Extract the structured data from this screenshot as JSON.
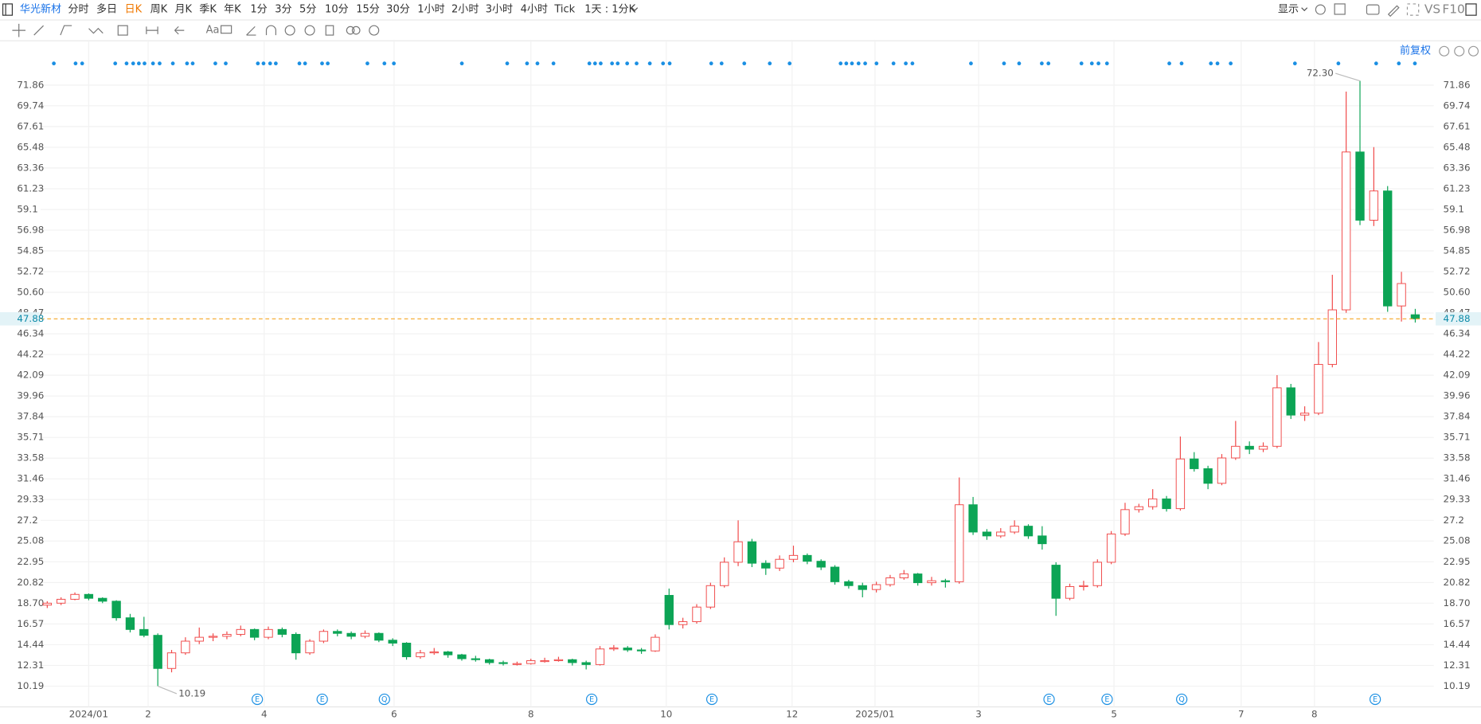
{
  "toolbar": {
    "symbol": "华光新材",
    "periods": [
      "分时",
      "多日",
      "日K",
      "周K",
      "月K",
      "季K",
      "年K",
      "1分",
      "3分",
      "5分",
      "10分",
      "15分",
      "30分",
      "1小时",
      "2小时",
      "3小时",
      "4小时",
      "Tick"
    ],
    "interval": "1天 : 1分K",
    "display": "显示",
    "vs": "VS",
    "f10": "F10"
  },
  "price_mode": "前复权",
  "chart_data": {
    "type": "candlestick",
    "up_color": "#f04848",
    "down_color": "#0ca455",
    "grid": true,
    "ylim": [
      8.06,
      76.51
    ],
    "yticks": [
      10.19,
      12.31,
      14.44,
      16.57,
      {
        "value": 18.7,
        "label": "18.70"
      },
      20.82,
      22.95,
      25.08,
      27.2,
      29.33,
      31.46,
      33.58,
      35.71,
      37.84,
      39.96,
      42.09,
      44.22,
      46.34,
      48.47,
      {
        "value": 50.6,
        "label": "50.60"
      },
      52.72,
      54.85,
      56.98,
      59.1,
      61.23,
      63.36,
      65.48,
      67.61,
      69.74,
      71.86
    ],
    "xlim": [
      -0.48,
      100.34
    ],
    "xticks": [
      {
        "value": 3,
        "label": "2024/01"
      },
      {
        "value": 7.3,
        "label": "2"
      },
      {
        "value": 15.7,
        "label": "4"
      },
      {
        "value": 25.1,
        "label": "6"
      },
      {
        "value": 35,
        "label": "8"
      },
      {
        "value": 44.8,
        "label": "10"
      },
      {
        "value": 53.9,
        "label": "12"
      },
      {
        "value": 59.9,
        "label": "2025/01"
      },
      {
        "value": 67.4,
        "label": "3"
      },
      {
        "value": 77.2,
        "label": "5"
      },
      {
        "value": 86.4,
        "label": "7"
      },
      {
        "value": 91.7,
        "label": "8"
      }
    ],
    "last_price": 47.88,
    "annotations": [
      {
        "index": 95,
        "value": 72.3,
        "label": "72.30"
      },
      {
        "index": 8,
        "value": 10.19,
        "label": "10.19"
      }
    ],
    "events": [
      {
        "value": 15.2,
        "label": "E"
      },
      {
        "value": 19.9,
        "label": "E"
      },
      {
        "value": 24.4,
        "label": "Q"
      },
      {
        "value": 39.4,
        "label": "E"
      },
      {
        "value": 48.1,
        "label": "E"
      },
      {
        "value": 72.5,
        "label": "E"
      },
      {
        "value": 76.7,
        "label": "E"
      },
      {
        "value": 82.1,
        "label": "Q"
      },
      {
        "value": 96.1,
        "label": "E"
      }
    ],
    "ohlc": [
      [
        18.5,
        18.9,
        18.2,
        18.7
      ],
      [
        18.7,
        19.3,
        18.5,
        19.1
      ],
      [
        19.1,
        19.8,
        19.0,
        19.6
      ],
      [
        19.6,
        19.7,
        19.0,
        19.2
      ],
      [
        19.2,
        19.3,
        18.7,
        18.9
      ],
      [
        18.9,
        19.0,
        16.9,
        17.2
      ],
      [
        17.2,
        17.6,
        15.7,
        16.0
      ],
      [
        16.0,
        17.3,
        15.2,
        15.4
      ],
      [
        15.4,
        15.6,
        10.19,
        12.0
      ],
      [
        12.0,
        13.9,
        11.6,
        13.6
      ],
      [
        13.6,
        15.2,
        13.4,
        14.8
      ],
      [
        14.8,
        16.2,
        14.5,
        15.2
      ],
      [
        15.2,
        15.6,
        14.8,
        15.3
      ],
      [
        15.3,
        15.8,
        15.0,
        15.5
      ],
      [
        15.5,
        16.4,
        15.3,
        16.0
      ],
      [
        16.0,
        16.1,
        14.9,
        15.2
      ],
      [
        15.2,
        16.3,
        15.0,
        16.0
      ],
      [
        16.0,
        16.2,
        15.2,
        15.5
      ],
      [
        15.5,
        15.7,
        12.9,
        13.6
      ],
      [
        13.6,
        15.0,
        13.4,
        14.8
      ],
      [
        14.8,
        16.0,
        14.6,
        15.8
      ],
      [
        15.8,
        16.0,
        15.3,
        15.6
      ],
      [
        15.6,
        15.8,
        15.0,
        15.3
      ],
      [
        15.3,
        15.9,
        15.1,
        15.6
      ],
      [
        15.6,
        15.7,
        14.7,
        14.9
      ],
      [
        14.9,
        15.1,
        14.3,
        14.6
      ],
      [
        14.6,
        14.7,
        12.9,
        13.2
      ],
      [
        13.2,
        13.9,
        13.0,
        13.6
      ],
      [
        13.6,
        14.1,
        13.4,
        13.7
      ],
      [
        13.7,
        13.8,
        13.1,
        13.4
      ],
      [
        13.4,
        13.5,
        12.8,
        13.0
      ],
      [
        13.0,
        13.3,
        12.7,
        12.9
      ],
      [
        12.9,
        13.0,
        12.4,
        12.6
      ],
      [
        12.6,
        12.8,
        12.3,
        12.5
      ],
      [
        12.5,
        12.7,
        12.3,
        12.5
      ],
      [
        12.5,
        13.0,
        12.4,
        12.8
      ],
      [
        12.8,
        13.1,
        12.6,
        12.8
      ],
      [
        12.8,
        13.2,
        12.7,
        12.9
      ],
      [
        12.9,
        13.0,
        12.3,
        12.6
      ],
      [
        12.6,
        12.8,
        11.9,
        12.4
      ],
      [
        12.4,
        14.3,
        12.3,
        14.0
      ],
      [
        14.0,
        14.4,
        13.8,
        14.1
      ],
      [
        14.1,
        14.3,
        13.7,
        13.9
      ],
      [
        13.9,
        14.1,
        13.5,
        13.8
      ],
      [
        13.8,
        15.5,
        13.7,
        15.2
      ],
      [
        19.5,
        20.2,
        16.0,
        16.5
      ],
      [
        16.5,
        17.2,
        16.1,
        16.8
      ],
      [
        16.8,
        18.6,
        16.6,
        18.3
      ],
      [
        18.3,
        20.8,
        18.1,
        20.5
      ],
      [
        20.5,
        23.4,
        20.3,
        22.9
      ],
      [
        22.9,
        27.2,
        22.5,
        25.0
      ],
      [
        25.0,
        25.3,
        22.4,
        22.8
      ],
      [
        22.8,
        23.1,
        21.6,
        22.3
      ],
      [
        22.3,
        23.6,
        22.0,
        23.2
      ],
      [
        23.2,
        24.6,
        22.9,
        23.6
      ],
      [
        23.6,
        23.8,
        22.7,
        23.0
      ],
      [
        23.0,
        23.2,
        22.1,
        22.4
      ],
      [
        22.4,
        22.6,
        20.6,
        20.9
      ],
      [
        20.9,
        21.1,
        20.2,
        20.5
      ],
      [
        20.5,
        20.8,
        19.3,
        20.1
      ],
      [
        20.1,
        20.9,
        19.8,
        20.6
      ],
      [
        20.6,
        21.6,
        20.4,
        21.3
      ],
      [
        21.3,
        22.1,
        21.1,
        21.7
      ],
      [
        21.7,
        21.8,
        20.5,
        20.8
      ],
      [
        20.8,
        21.4,
        20.5,
        21.0
      ],
      [
        21.0,
        21.2,
        20.3,
        20.9
      ],
      [
        20.9,
        31.6,
        20.7,
        28.8
      ],
      [
        28.8,
        29.6,
        25.7,
        26.0
      ],
      [
        26.0,
        26.3,
        25.2,
        25.6
      ],
      [
        25.6,
        26.4,
        25.4,
        26.0
      ],
      [
        26.0,
        27.2,
        25.8,
        26.6
      ],
      [
        26.6,
        26.8,
        25.3,
        25.6
      ],
      [
        25.6,
        26.6,
        24.2,
        24.8
      ],
      [
        22.6,
        22.9,
        17.4,
        19.2
      ],
      [
        19.2,
        20.7,
        19.0,
        20.4
      ],
      [
        20.4,
        21.0,
        20.0,
        20.5
      ],
      [
        20.5,
        23.2,
        20.3,
        22.9
      ],
      [
        22.9,
        26.1,
        22.7,
        25.8
      ],
      [
        25.8,
        29.0,
        25.6,
        28.3
      ],
      [
        28.3,
        28.9,
        28.0,
        28.6
      ],
      [
        28.6,
        30.4,
        28.3,
        29.4
      ],
      [
        29.4,
        29.7,
        28.1,
        28.4
      ],
      [
        28.4,
        35.8,
        28.2,
        33.5
      ],
      [
        33.5,
        34.2,
        32.2,
        32.5
      ],
      [
        32.5,
        32.8,
        30.4,
        31.0
      ],
      [
        31.0,
        34.0,
        30.8,
        33.6
      ],
      [
        33.6,
        37.4,
        33.4,
        34.8
      ],
      [
        34.8,
        35.3,
        34.0,
        34.5
      ],
      [
        34.5,
        35.2,
        34.2,
        34.8
      ],
      [
        34.8,
        42.1,
        34.6,
        40.8
      ],
      [
        40.8,
        41.2,
        37.6,
        38.0
      ],
      [
        38.0,
        38.9,
        37.4,
        38.2
      ],
      [
        38.2,
        45.5,
        38.0,
        43.2
      ],
      [
        43.2,
        52.4,
        42.9,
        48.8
      ],
      [
        48.8,
        71.2,
        48.5,
        65.0
      ],
      [
        65.0,
        72.3,
        57.5,
        58.0
      ],
      [
        58.0,
        65.5,
        57.4,
        61.0
      ],
      [
        61.0,
        61.5,
        48.6,
        49.2
      ],
      [
        49.2,
        52.7,
        47.6,
        51.5
      ],
      [
        48.3,
        48.9,
        47.5,
        47.88
      ]
    ]
  }
}
